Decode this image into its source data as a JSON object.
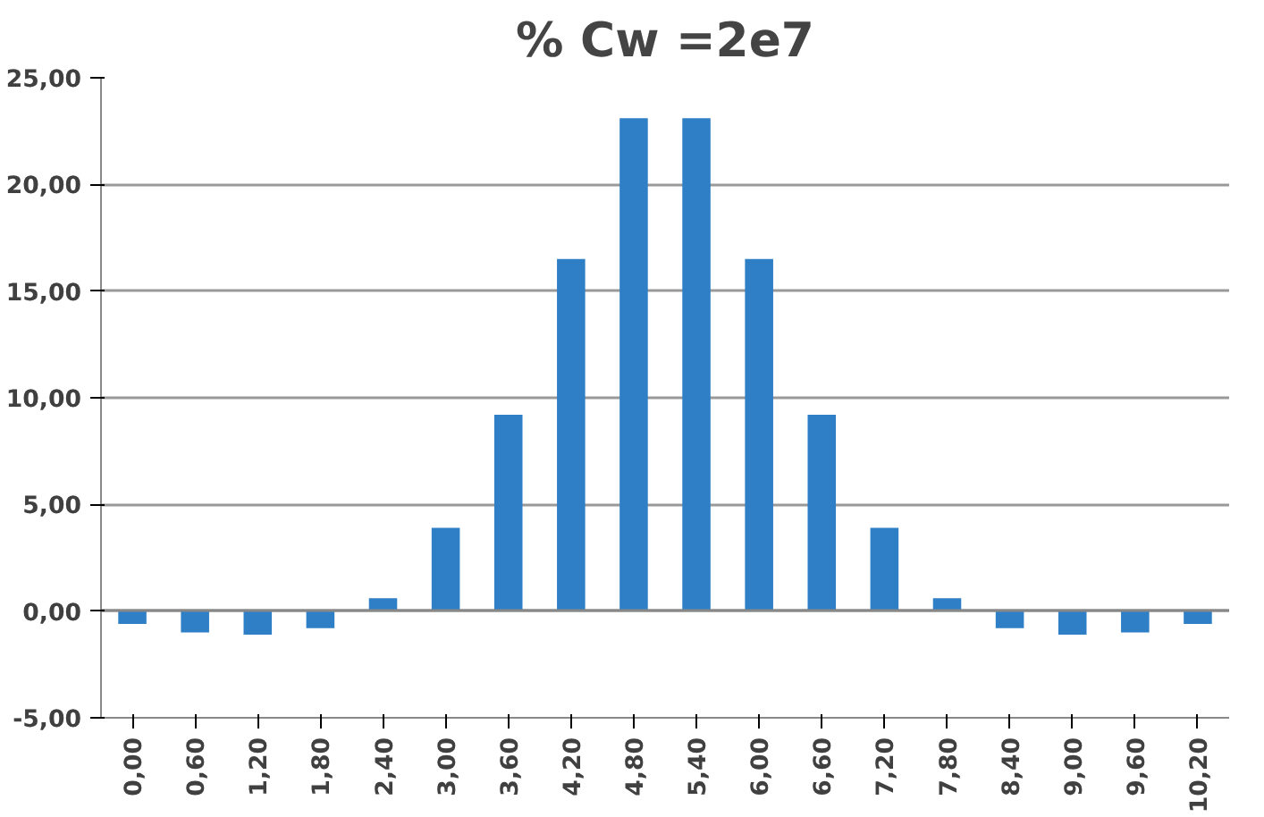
{
  "chart_data": {
    "type": "bar",
    "title": "% Cw =2e7",
    "categories": [
      "0,00",
      "0,60",
      "1,20",
      "1,80",
      "2,40",
      "3,00",
      "3,60",
      "4,20",
      "4,80",
      "5,40",
      "6,00",
      "6,60",
      "7,20",
      "7,80",
      "8,40",
      "9,00",
      "9,60",
      "10,20"
    ],
    "values": [
      -0.6,
      -1.0,
      -1.1,
      -0.8,
      0.6,
      3.9,
      9.2,
      16.5,
      23.1,
      23.1,
      16.5,
      9.2,
      3.9,
      0.6,
      -0.8,
      -1.1,
      -1.0,
      -0.6
    ],
    "color": "#2e7fc6",
    "ylim": [
      -5,
      25
    ],
    "yticks": [
      {
        "value": -5,
        "label": "-5,00"
      },
      {
        "value": 0,
        "label": "0,00"
      },
      {
        "value": 5,
        "label": "5,00"
      },
      {
        "value": 10,
        "label": "10,00"
      },
      {
        "value": 15,
        "label": "15,00"
      },
      {
        "value": 20,
        "label": "20,00"
      },
      {
        "value": 25,
        "label": "25,00"
      }
    ],
    "grid": "y"
  }
}
